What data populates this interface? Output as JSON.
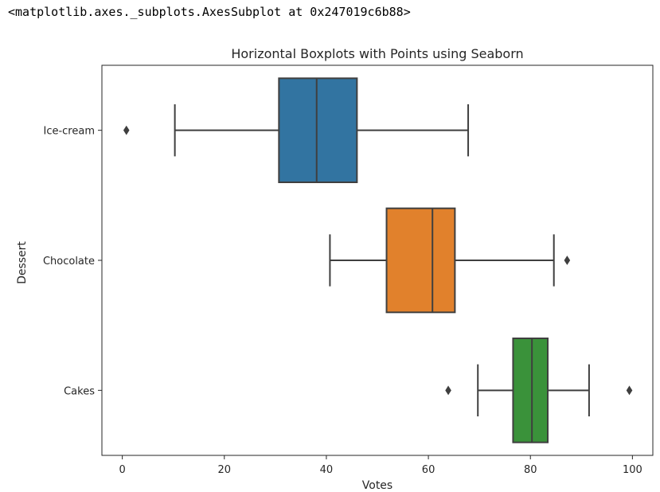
{
  "output_repr": "<matplotlib.axes._subplots.AxesSubplot at 0x247019c6b88>",
  "chart_data": {
    "type": "boxplot",
    "orientation": "horizontal",
    "title": "Horizontal Boxplots with Points using Seaborn",
    "xlabel": "Votes",
    "ylabel": "Dessert",
    "xlim": [
      -4,
      104
    ],
    "xticks": [
      0,
      20,
      40,
      60,
      80,
      100
    ],
    "grid": false,
    "categories": [
      "Ice-cream",
      "Chocolate",
      "Cakes"
    ],
    "series": [
      {
        "category": "Ice-cream",
        "color": "#3274a1",
        "whisker_low": 10.3,
        "q1": 30.7,
        "median": 38.1,
        "q3": 46.0,
        "whisker_high": 67.8,
        "outliers": [
          0.8
        ]
      },
      {
        "category": "Chocolate",
        "color": "#e1812c",
        "whisker_low": 40.7,
        "q1": 51.8,
        "median": 60.8,
        "q3": 65.2,
        "whisker_high": 84.6,
        "outliers": [
          87.2
        ]
      },
      {
        "category": "Cakes",
        "color": "#3a923a",
        "whisker_low": 69.7,
        "q1": 76.6,
        "median": 80.3,
        "q3": 83.4,
        "whisker_high": 91.5,
        "outliers": [
          63.9,
          99.4
        ]
      }
    ]
  }
}
